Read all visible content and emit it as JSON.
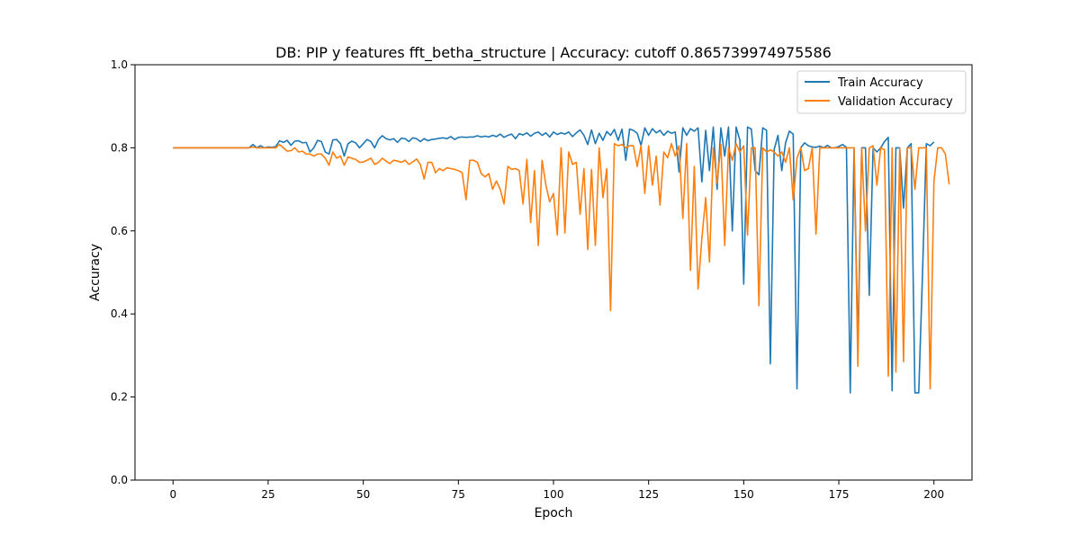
{
  "chart_data": {
    "type": "line",
    "title": "DB: PIP y features fft_betha_structure | Accuracy: cutoff 0.865739974975586",
    "xlabel": "Epoch",
    "ylabel": "Accuracy",
    "xlim": [
      -10,
      210
    ],
    "ylim": [
      0.0,
      1.0
    ],
    "xticks": [
      0,
      25,
      50,
      75,
      100,
      125,
      150,
      175,
      200
    ],
    "yticks": [
      0.0,
      0.2,
      0.4,
      0.6,
      0.8,
      1.0
    ],
    "xtick_labels": [
      "0",
      "25",
      "50",
      "75",
      "100",
      "125",
      "150",
      "175",
      "200"
    ],
    "ytick_labels": [
      "0.0",
      "0.2",
      "0.4",
      "0.6",
      "0.8",
      "1.0"
    ],
    "grid": false,
    "legend_position": "top-right",
    "series": [
      {
        "name": "Train Accuracy",
        "color": "#1f77b4",
        "values": [
          0.8,
          0.8,
          0.8,
          0.8,
          0.8,
          0.8,
          0.8,
          0.8,
          0.8,
          0.8,
          0.8,
          0.8,
          0.8,
          0.8,
          0.8,
          0.8,
          0.8,
          0.8,
          0.8,
          0.8,
          0.8,
          0.808,
          0.8,
          0.805,
          0.8,
          0.802,
          0.801,
          0.803,
          0.817,
          0.813,
          0.818,
          0.806,
          0.816,
          0.817,
          0.812,
          0.813,
          0.79,
          0.8,
          0.818,
          0.815,
          0.79,
          0.785,
          0.819,
          0.82,
          0.81,
          0.78,
          0.81,
          0.816,
          0.812,
          0.8,
          0.81,
          0.82,
          0.815,
          0.8,
          0.82,
          0.829,
          0.822,
          0.819,
          0.822,
          0.813,
          0.823,
          0.822,
          0.815,
          0.824,
          0.822,
          0.815,
          0.822,
          0.817,
          0.82,
          0.821,
          0.823,
          0.824,
          0.822,
          0.827,
          0.82,
          0.825,
          0.826,
          0.825,
          0.826,
          0.826,
          0.829,
          0.826,
          0.828,
          0.826,
          0.83,
          0.827,
          0.833,
          0.825,
          0.83,
          0.833,
          0.822,
          0.834,
          0.831,
          0.836,
          0.828,
          0.835,
          0.838,
          0.83,
          0.836,
          0.826,
          0.838,
          0.832,
          0.836,
          0.833,
          0.838,
          0.827,
          0.836,
          0.843,
          0.83,
          0.808,
          0.843,
          0.81,
          0.835,
          0.818,
          0.839,
          0.83,
          0.844,
          0.818,
          0.845,
          0.77,
          0.845,
          0.842,
          0.835,
          0.806,
          0.848,
          0.83,
          0.846,
          0.836,
          0.842,
          0.83,
          0.84,
          0.835,
          0.838,
          0.742,
          0.848,
          0.83,
          0.846,
          0.84,
          0.848,
          0.718,
          0.842,
          0.745,
          0.85,
          0.7,
          0.848,
          0.78,
          0.85,
          0.6,
          0.85,
          0.818,
          0.472,
          0.85,
          0.845,
          0.745,
          0.735,
          0.848,
          0.842,
          0.28,
          0.796,
          0.83,
          0.745,
          0.812,
          0.84,
          0.833,
          0.22,
          0.8,
          0.812,
          0.805,
          0.802,
          0.801,
          0.804,
          0.8,
          0.806,
          0.8,
          0.8,
          0.803,
          0.808,
          0.801,
          0.21,
          0.8,
          0.325,
          0.8,
          0.8,
          0.445,
          0.8,
          0.79,
          0.8,
          0.815,
          0.825,
          0.215,
          0.8,
          0.8,
          0.655,
          0.8,
          0.81,
          0.21,
          0.21,
          0.5,
          0.81,
          0.805,
          0.814
        ],
        "_": 0
      },
      {
        "name": "Validation Accuracy",
        "color": "#ff7f0e",
        "values": [
          0.8,
          0.8,
          0.8,
          0.8,
          0.8,
          0.8,
          0.8,
          0.8,
          0.8,
          0.8,
          0.8,
          0.8,
          0.8,
          0.8,
          0.8,
          0.8,
          0.8,
          0.8,
          0.8,
          0.8,
          0.8,
          0.802,
          0.8,
          0.8,
          0.8,
          0.8,
          0.8,
          0.8,
          0.808,
          0.8,
          0.792,
          0.793,
          0.8,
          0.79,
          0.792,
          0.785,
          0.785,
          0.78,
          0.785,
          0.785,
          0.775,
          0.758,
          0.79,
          0.775,
          0.78,
          0.758,
          0.778,
          0.775,
          0.772,
          0.765,
          0.766,
          0.77,
          0.775,
          0.76,
          0.765,
          0.775,
          0.768,
          0.762,
          0.77,
          0.768,
          0.765,
          0.77,
          0.76,
          0.766,
          0.773,
          0.76,
          0.725,
          0.765,
          0.765,
          0.74,
          0.75,
          0.745,
          0.752,
          0.75,
          0.748,
          0.745,
          0.74,
          0.675,
          0.77,
          0.77,
          0.765,
          0.738,
          0.73,
          0.738,
          0.7,
          0.72,
          0.7,
          0.665,
          0.755,
          0.748,
          0.75,
          0.745,
          0.665,
          0.772,
          0.62,
          0.745,
          0.565,
          0.77,
          0.71,
          0.67,
          0.69,
          0.59,
          0.8,
          0.595,
          0.79,
          0.76,
          0.765,
          0.64,
          0.75,
          0.555,
          0.748,
          0.565,
          0.8,
          0.68,
          0.75,
          0.408,
          0.81,
          0.805,
          0.808,
          0.8,
          0.805,
          0.805,
          0.755,
          0.805,
          0.69,
          0.805,
          0.71,
          0.78,
          0.662,
          0.79,
          0.776,
          0.81,
          0.78,
          0.805,
          0.63,
          0.81,
          0.505,
          0.755,
          0.46,
          0.582,
          0.68,
          0.525,
          0.8,
          0.715,
          0.808,
          0.565,
          0.8,
          0.77,
          0.81,
          0.79,
          0.805,
          0.59,
          0.8,
          0.8,
          0.42,
          0.8,
          0.79,
          0.795,
          0.79,
          0.78,
          0.79,
          0.765,
          0.8,
          0.675,
          0.775,
          0.8,
          0.745,
          0.75,
          0.8,
          0.592,
          0.8,
          0.8,
          0.8,
          0.8,
          0.8,
          0.8,
          0.8,
          0.8,
          0.8,
          0.8,
          0.274,
          0.8,
          0.6,
          0.8,
          0.805,
          0.71,
          0.8,
          0.795,
          0.25,
          0.8,
          0.26,
          0.8,
          0.285,
          0.8,
          0.8,
          0.7,
          0.8,
          0.8,
          0.8,
          0.22,
          0.72,
          0.8,
          0.8,
          0.785,
          0.712
        ]
      }
    ]
  }
}
